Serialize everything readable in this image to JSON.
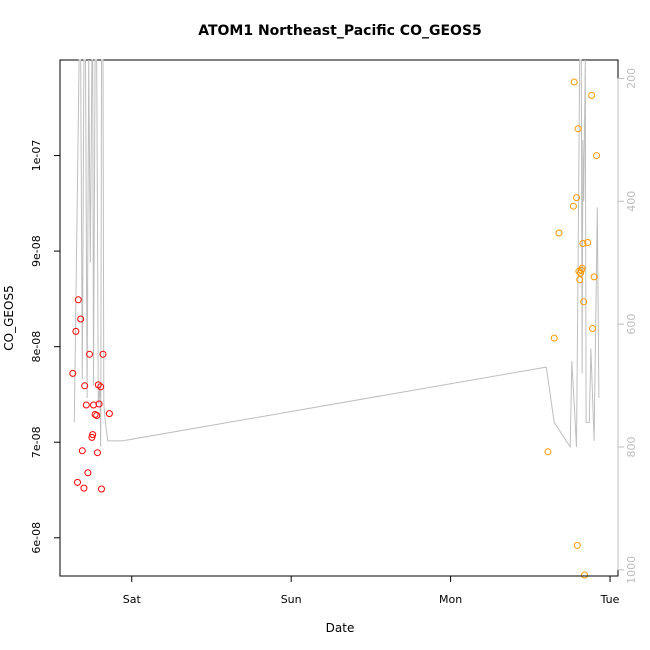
{
  "chart_data": {
    "type": "scatter",
    "title": "ATOM1 Northeast_Pacific CO_GEOS5",
    "xlabel": "Date",
    "ylabel": "CO_GEOS5",
    "x_ticks": [
      "Sat",
      "Sun",
      "Mon",
      "Tue"
    ],
    "x_range_days": [
      -0.45,
      3.05
    ],
    "y_ticks": [
      {
        "value": 6e-08,
        "label": "6e-08"
      },
      {
        "value": 7e-08,
        "label": "7e-08"
      },
      {
        "value": 8e-08,
        "label": "8e-08"
      },
      {
        "value": 9e-08,
        "label": "9e-08"
      },
      {
        "value": 1e-07,
        "label": "1e-07"
      }
    ],
    "ylim": [
      5.6e-08,
      1.1e-07
    ],
    "y2_ticks": [
      200,
      400,
      600,
      800,
      1000
    ],
    "y2lim": [
      1010,
      170
    ],
    "grid": false,
    "colors": {
      "series_red": "#ff0000",
      "series_orange": "#ff9900",
      "pressure_line": "#bebebe"
    },
    "series": [
      {
        "color": "#ff0000",
        "points": [
          [
            -0.37,
            7.72e-08
          ],
          [
            -0.35,
            8.16e-08
          ],
          [
            -0.34,
            6.58e-08
          ],
          [
            -0.335,
            8.49e-08
          ],
          [
            -0.32,
            8.29e-08
          ],
          [
            -0.31,
            6.91e-08
          ],
          [
            -0.3,
            6.52e-08
          ],
          [
            -0.295,
            7.59e-08
          ],
          [
            -0.285,
            7.39e-08
          ],
          [
            -0.275,
            6.68e-08
          ],
          [
            -0.265,
            7.92e-08
          ],
          [
            -0.25,
            7.05e-08
          ],
          [
            -0.245,
            7.08e-08
          ],
          [
            -0.24,
            7.39e-08
          ],
          [
            -0.23,
            7.29e-08
          ],
          [
            -0.22,
            7.28e-08
          ],
          [
            -0.215,
            6.89e-08
          ],
          [
            -0.21,
            7.6e-08
          ],
          [
            -0.205,
            7.4e-08
          ],
          [
            -0.195,
            7.58e-08
          ],
          [
            -0.19,
            6.51e-08
          ],
          [
            -0.18,
            7.92e-08
          ],
          [
            -0.14,
            7.3e-08
          ]
        ]
      },
      {
        "color": "#ff9900",
        "points": [
          [
            2.61,
            6.9e-08
          ],
          [
            2.65,
            8.09e-08
          ],
          [
            2.68,
            9.19e-08
          ],
          [
            2.77,
            9.47e-08
          ],
          [
            2.775,
            1.077e-07
          ],
          [
            2.79,
            9.56e-08
          ],
          [
            2.795,
            5.92e-08
          ],
          [
            2.8,
            1.028e-07
          ],
          [
            2.805,
            8.79e-08
          ],
          [
            2.81,
            8.7e-08
          ],
          [
            2.815,
            8.77e-08
          ],
          [
            2.82,
            8.8e-08
          ],
          [
            2.825,
            8.82e-08
          ],
          [
            2.83,
            9.08e-08
          ],
          [
            2.835,
            8.47e-08
          ],
          [
            2.84,
            5.61e-08
          ],
          [
            2.86,
            9.09e-08
          ],
          [
            2.885,
            1.063e-07
          ],
          [
            2.89,
            8.19e-08
          ],
          [
            2.9,
            8.73e-08
          ],
          [
            2.915,
            1e-07
          ]
        ]
      }
    ],
    "pressure_line": {
      "axis": "right",
      "points": [
        [
          -0.36,
          760
        ],
        [
          -0.33,
          160
        ],
        [
          -0.32,
          160
        ],
        [
          -0.31,
          690
        ],
        [
          -0.3,
          160
        ],
        [
          -0.29,
          160
        ],
        [
          -0.28,
          720
        ],
        [
          -0.27,
          160
        ],
        [
          -0.26,
          500
        ],
        [
          -0.25,
          160
        ],
        [
          -0.245,
          160
        ],
        [
          -0.24,
          700
        ],
        [
          -0.23,
          160
        ],
        [
          -0.22,
          160
        ],
        [
          -0.21,
          730
        ],
        [
          -0.2,
          700
        ],
        [
          -0.195,
          800
        ],
        [
          -0.19,
          160
        ],
        [
          -0.18,
          160
        ],
        [
          -0.175,
          730
        ],
        [
          -0.165,
          760
        ],
        [
          -0.15,
          790
        ],
        [
          -0.06,
          790
        ],
        [
          2.6,
          670
        ],
        [
          2.65,
          760
        ],
        [
          2.75,
          800
        ],
        [
          2.76,
          660
        ],
        [
          2.775,
          730
        ],
        [
          2.79,
          800
        ],
        [
          2.8,
          500
        ],
        [
          2.81,
          160
        ],
        [
          2.82,
          160
        ],
        [
          2.825,
          680
        ],
        [
          2.83,
          300
        ],
        [
          2.835,
          400
        ],
        [
          2.845,
          160
        ],
        [
          2.85,
          760
        ],
        [
          2.87,
          760
        ],
        [
          2.88,
          640
        ],
        [
          2.9,
          790
        ],
        [
          2.92,
          410
        ],
        [
          2.93,
          720
        ]
      ]
    }
  }
}
